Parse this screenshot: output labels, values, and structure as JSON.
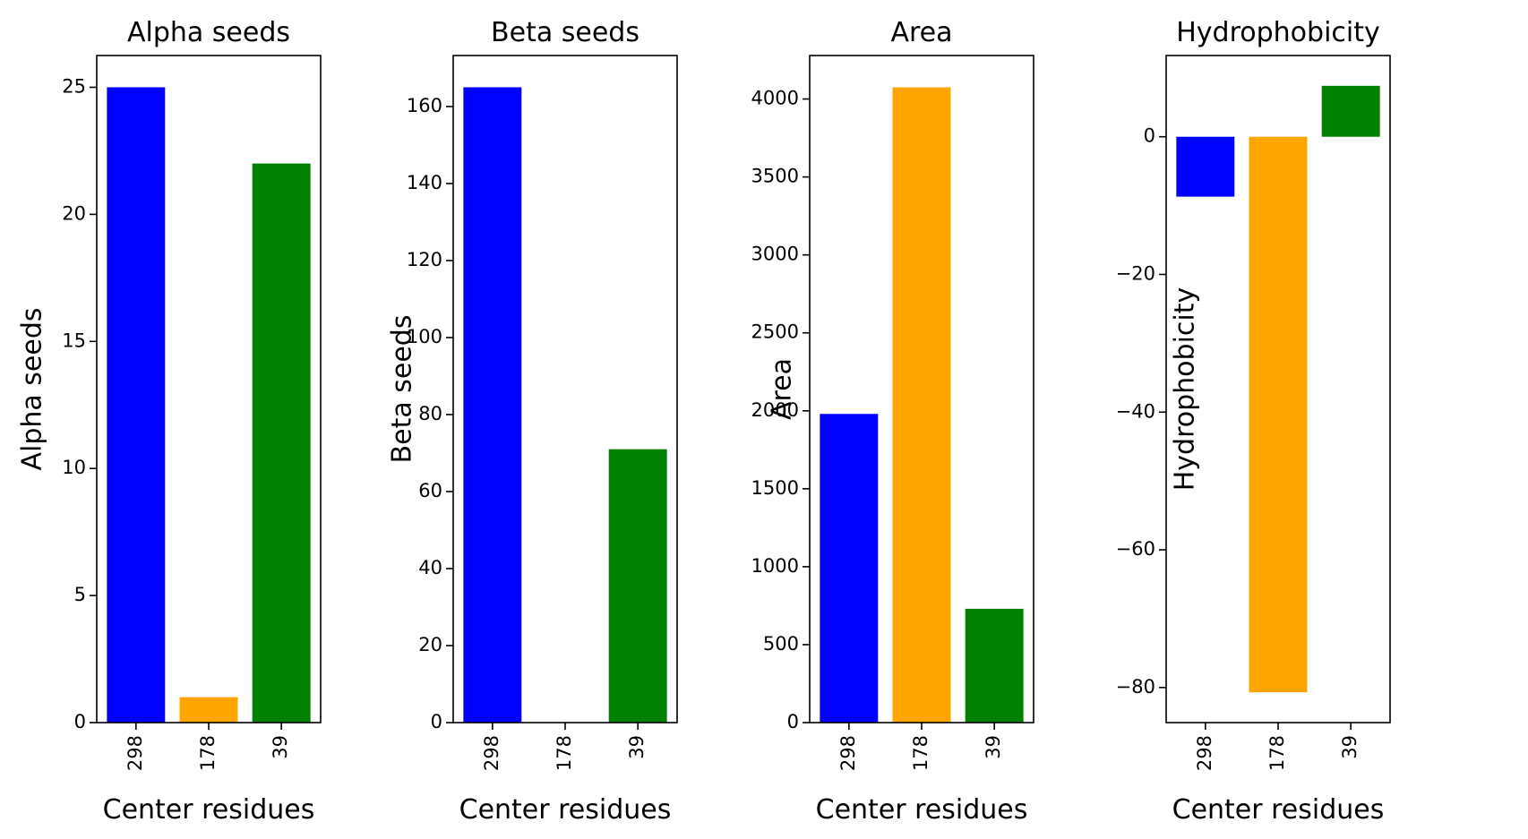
{
  "chart_data": [
    {
      "type": "bar",
      "title": "Alpha seeds",
      "xlabel": "Center residues",
      "ylabel": "Alpha seeds",
      "categories": [
        "298",
        "178",
        "39"
      ],
      "values": [
        25,
        1,
        22
      ],
      "colors": [
        "#0000ff",
        "#ffa500",
        "#008000"
      ],
      "ylim": [
        0,
        26.25
      ],
      "yticks": [
        0,
        5,
        10,
        15,
        20,
        25
      ],
      "ytick_labels": [
        "0",
        "5",
        "10",
        "15",
        "20",
        "25"
      ],
      "grid": false
    },
    {
      "type": "bar",
      "title": "Beta seeds",
      "xlabel": "Center residues",
      "ylabel": "Beta seeds",
      "categories": [
        "298",
        "178",
        "39"
      ],
      "values": [
        165,
        0,
        71
      ],
      "colors": [
        "#0000ff",
        "#ffa500",
        "#008000"
      ],
      "ylim": [
        0,
        173.25
      ],
      "yticks": [
        0,
        20,
        40,
        60,
        80,
        100,
        120,
        140,
        160
      ],
      "ytick_labels": [
        "0",
        "20",
        "40",
        "60",
        "80",
        "100",
        "120",
        "140",
        "160"
      ],
      "grid": false
    },
    {
      "type": "bar",
      "title": "Area",
      "xlabel": "Center residues",
      "ylabel": "Area",
      "categories": [
        "298",
        "178",
        "39"
      ],
      "values": [
        1980,
        4075,
        730
      ],
      "colors": [
        "#0000ff",
        "#ffa500",
        "#008000"
      ],
      "ylim": [
        0,
        4279
      ],
      "yticks": [
        0,
        500,
        1000,
        1500,
        2000,
        2500,
        3000,
        3500,
        4000
      ],
      "ytick_labels": [
        "0",
        "500",
        "1000",
        "1500",
        "2000",
        "2500",
        "3000",
        "3500",
        "4000"
      ],
      "grid": false
    },
    {
      "type": "bar",
      "title": "Hydrophobicity",
      "xlabel": "Center residues",
      "ylabel": "Hydrophobicity",
      "categories": [
        "298",
        "178",
        "39"
      ],
      "values": [
        -8.7,
        -80.7,
        7.4
      ],
      "colors": [
        "#0000ff",
        "#ffa500",
        "#008000"
      ],
      "ylim": [
        -85.1,
        11.8
      ],
      "yticks": [
        -80,
        -60,
        -40,
        -20,
        0
      ],
      "ytick_labels": [
        "−80",
        "−60",
        "−40",
        "−20",
        "0"
      ],
      "grid": false
    }
  ]
}
